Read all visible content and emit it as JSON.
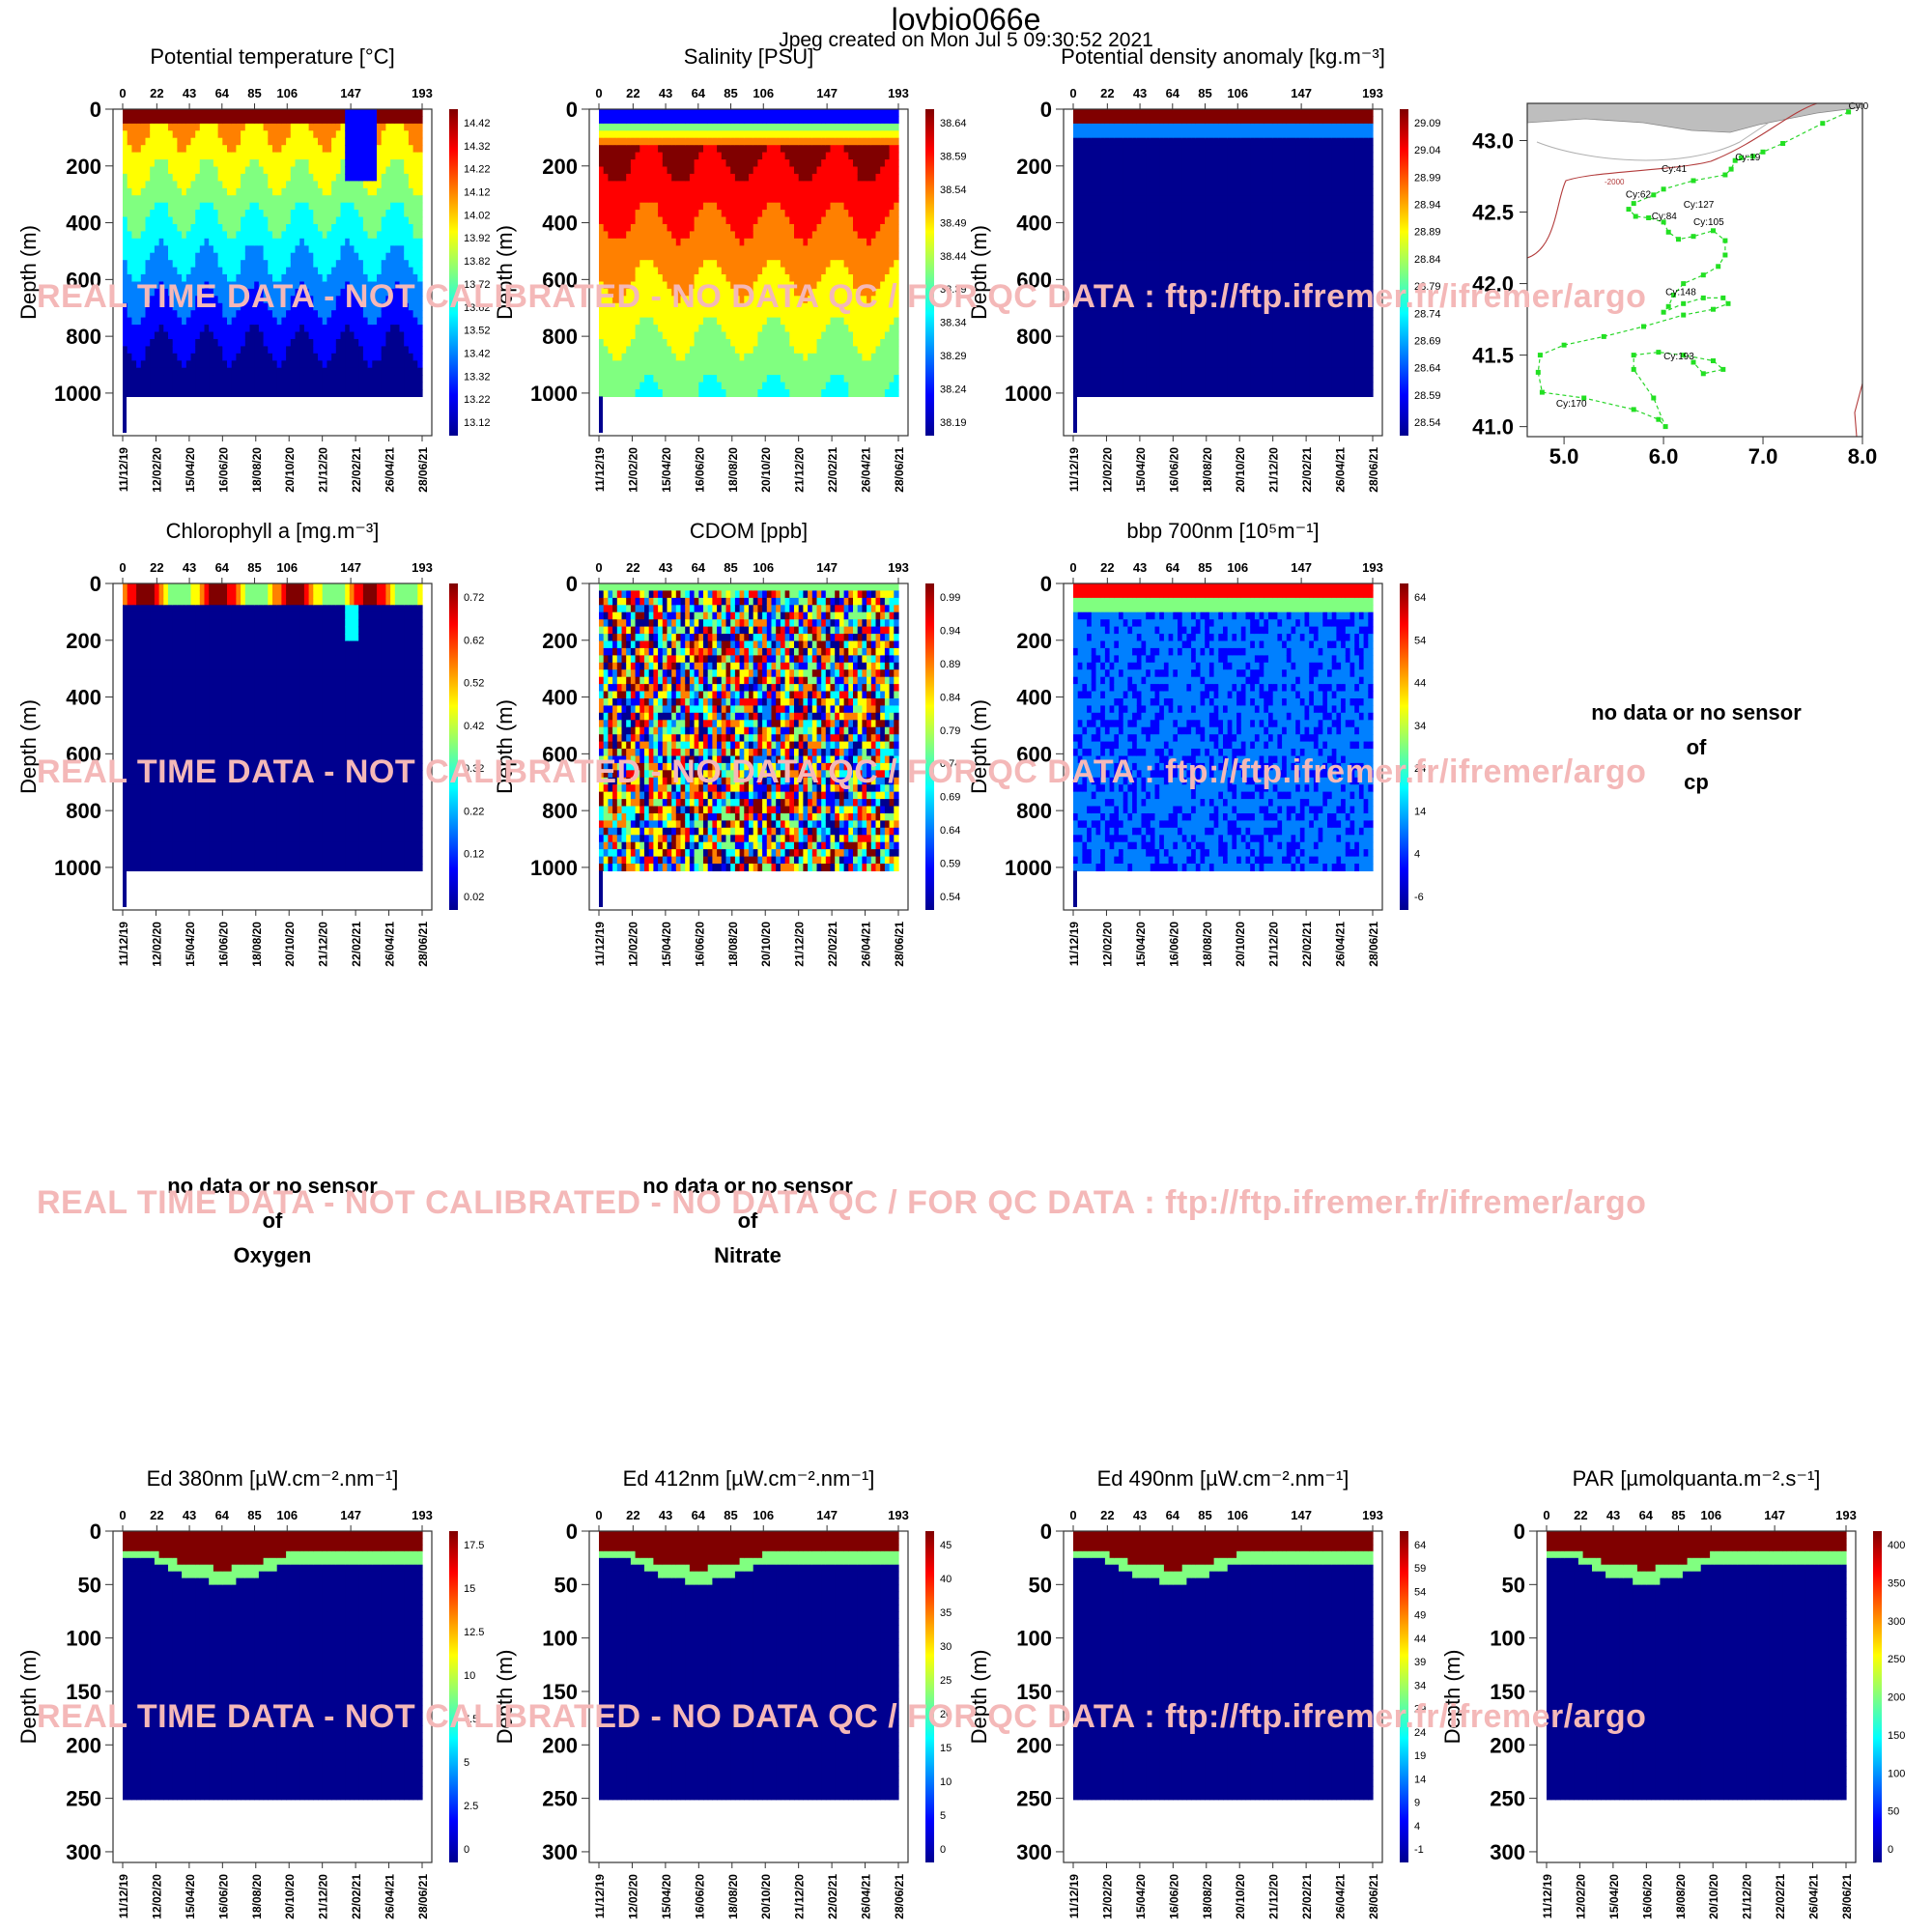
{
  "header": {
    "title": "lovbio066e",
    "subtitle": "Jpeg created on  Mon Jul  5 09:30:52 2021"
  },
  "watermark": "REAL TIME DATA - NOT CALIBRATED - NO DATA QC   /  FOR QC DATA : ftp://ftp.ifremer.fr/ifremer/argo",
  "common": {
    "cycle_ticks": [
      "0",
      "22",
      "43",
      "64",
      "85",
      "106",
      "147",
      "193"
    ],
    "cycle_values": [
      0,
      22,
      43,
      64,
      85,
      106,
      147,
      193
    ],
    "date_ticks": [
      "11/12/19",
      "12/02/20",
      "15/04/20",
      "16/06/20",
      "18/08/20",
      "20/10/20",
      "21/12/20",
      "22/02/21",
      "26/04/21",
      "28/06/21"
    ],
    "ylabel": "Depth (m)",
    "colormap": [
      "#00008f",
      "#0000ff",
      "#0080ff",
      "#00ffff",
      "#80ff80",
      "#ffff00",
      "#ff8000",
      "#ff0000",
      "#800000"
    ]
  },
  "no_data": [
    {
      "line1": "no data or no sensor",
      "line2": "of",
      "line3": "cp"
    },
    {
      "line1": "no data or no sensor",
      "line2": "of",
      "line3": "Oxygen"
    },
    {
      "line1": "no data or no sensor",
      "line2": "of",
      "line3": "Nitrate"
    }
  ],
  "chart_data": [
    {
      "type": "heatmap",
      "title": "Potential temperature [°C]",
      "ylabel": "Depth (m)",
      "y_ticks": [
        0,
        200,
        400,
        600,
        800,
        1000
      ],
      "ylim": [
        1150,
        0
      ],
      "colorbar": [
        "14.42",
        "14.32",
        "14.22",
        "14.12",
        "14.02",
        "13.92",
        "13.82",
        "13.72",
        "13.62",
        "13.52",
        "13.42",
        "13.32",
        "13.22",
        "13.12"
      ]
    },
    {
      "type": "heatmap",
      "title": "Salinity [PSU]",
      "ylabel": "Depth (m)",
      "y_ticks": [
        0,
        200,
        400,
        600,
        800,
        1000
      ],
      "ylim": [
        1150,
        0
      ],
      "colorbar": [
        "38.64",
        "38.59",
        "38.54",
        "38.49",
        "38.44",
        "38.39",
        "38.34",
        "38.29",
        "38.24",
        "38.19"
      ]
    },
    {
      "type": "heatmap",
      "title": "Potential density anomaly [kg.m⁻³]",
      "ylabel": "Depth (m)",
      "y_ticks": [
        0,
        200,
        400,
        600,
        800,
        1000
      ],
      "ylim": [
        1150,
        0
      ],
      "colorbar": [
        "29.09",
        "29.04",
        "28.99",
        "28.94",
        "28.89",
        "28.84",
        "28.79",
        "28.74",
        "28.69",
        "28.64",
        "28.59",
        "28.54"
      ]
    },
    {
      "type": "scatter",
      "title": "",
      "xlabel": "",
      "ylabel": "",
      "x_ticks": [
        "5.0",
        "6.0",
        "7.0",
        "8.0"
      ],
      "y_ticks": [
        "43.0",
        "42.5",
        "42.0",
        "41.5",
        "41.0"
      ],
      "xlim": [
        4.63,
        8.0
      ],
      "ylim": [
        40.93,
        43.26
      ],
      "contour_label": "-2000",
      "trajectory": [
        [
          7.86,
          43.2
        ],
        [
          7.6,
          43.12
        ],
        [
          7.2,
          42.98
        ],
        [
          7.0,
          42.92
        ],
        [
          6.9,
          42.89
        ],
        [
          6.78,
          42.88
        ],
        [
          6.72,
          42.86
        ],
        [
          6.68,
          42.8
        ],
        [
          6.62,
          42.76
        ],
        [
          6.3,
          42.72
        ],
        [
          6.0,
          42.66
        ],
        [
          5.9,
          42.62
        ],
        [
          5.7,
          42.56
        ],
        [
          5.65,
          42.52
        ],
        [
          5.72,
          42.47
        ],
        [
          5.85,
          42.46
        ],
        [
          6.0,
          42.43
        ],
        [
          6.05,
          42.36
        ],
        [
          6.15,
          42.31
        ],
        [
          6.3,
          42.33
        ],
        [
          6.5,
          42.37
        ],
        [
          6.62,
          42.3
        ],
        [
          6.62,
          42.2
        ],
        [
          6.55,
          42.12
        ],
        [
          6.4,
          42.06
        ],
        [
          6.2,
          42.0
        ],
        [
          6.1,
          41.92
        ],
        [
          6.05,
          41.84
        ],
        [
          6.0,
          41.8
        ],
        [
          6.2,
          41.86
        ],
        [
          6.4,
          41.9
        ],
        [
          6.6,
          41.9
        ],
        [
          6.65,
          41.86
        ],
        [
          6.5,
          41.82
        ],
        [
          6.2,
          41.78
        ],
        [
          5.8,
          41.7
        ],
        [
          5.4,
          41.63
        ],
        [
          5.0,
          41.57
        ],
        [
          4.76,
          41.5
        ],
        [
          4.74,
          41.38
        ],
        [
          4.78,
          41.24
        ],
        [
          5.2,
          41.2
        ],
        [
          5.7,
          41.12
        ],
        [
          5.95,
          41.05
        ],
        [
          6.02,
          41.0
        ],
        [
          5.9,
          41.2
        ],
        [
          5.7,
          41.4
        ],
        [
          5.7,
          41.5
        ],
        [
          5.95,
          41.52
        ],
        [
          6.2,
          41.5
        ],
        [
          6.5,
          41.46
        ],
        [
          6.6,
          41.4
        ],
        [
          6.4,
          41.37
        ],
        [
          6.3,
          41.45
        ]
      ],
      "cycle_labels": [
        {
          "text": "Cy:0",
          "lon": 7.86,
          "lat": 43.22
        },
        {
          "text": "Cy:19",
          "lon": 6.72,
          "lat": 42.86
        },
        {
          "text": "Cy:41",
          "lon": 5.98,
          "lat": 42.78
        },
        {
          "text": "Cy:62",
          "lon": 5.62,
          "lat": 42.6
        },
        {
          "text": "Cy:127",
          "lon": 6.2,
          "lat": 42.53
        },
        {
          "text": "Cy:84",
          "lon": 5.88,
          "lat": 42.45
        },
        {
          "text": "Cy:105",
          "lon": 6.3,
          "lat": 42.41
        },
        {
          "text": "Cy:148",
          "lon": 6.02,
          "lat": 41.92
        },
        {
          "text": "Cy:193",
          "lon": 6.0,
          "lat": 41.47
        },
        {
          "text": "Cy:170",
          "lon": 4.92,
          "lat": 41.14
        }
      ]
    },
    {
      "type": "heatmap",
      "title": "Chlorophyll a [mg.m⁻³]",
      "ylabel": "Depth (m)",
      "y_ticks": [
        0,
        200,
        400,
        600,
        800,
        1000
      ],
      "ylim": [
        1150,
        0
      ],
      "colorbar": [
        "0.72",
        "0.62",
        "0.52",
        "0.42",
        "0.32",
        "0.22",
        "0.12",
        "0.02"
      ]
    },
    {
      "type": "heatmap",
      "title": "CDOM  [ppb]",
      "ylabel": "Depth (m)",
      "y_ticks": [
        0,
        200,
        400,
        600,
        800,
        1000
      ],
      "ylim": [
        1150,
        0
      ],
      "colorbar": [
        "0.99",
        "0.94",
        "0.89",
        "0.84",
        "0.79",
        "0.74",
        "0.69",
        "0.64",
        "0.59",
        "0.54"
      ]
    },
    {
      "type": "heatmap",
      "title": "bbp 700nm [10⁵m⁻¹]",
      "ylabel": "Depth (m)",
      "y_ticks": [
        0,
        200,
        400,
        600,
        800,
        1000
      ],
      "ylim": [
        1150,
        0
      ],
      "colorbar": [
        "64",
        "54",
        "44",
        "34",
        "24",
        "14",
        "4",
        "-6"
      ]
    },
    {
      "type": "heatmap",
      "title": "Ed 380nm [µW.cm⁻².nm⁻¹]",
      "ylabel": "Depth (m)",
      "y_ticks": [
        0,
        50,
        100,
        150,
        200,
        250,
        300
      ],
      "ylim": [
        310,
        0
      ],
      "colorbar": [
        "17.5",
        "15",
        "12.5",
        "10",
        "7.5",
        "5",
        "2.5",
        "0"
      ]
    },
    {
      "type": "heatmap",
      "title": "Ed 412nm [µW.cm⁻².nm⁻¹]",
      "ylabel": "Depth (m)",
      "y_ticks": [
        0,
        50,
        100,
        150,
        200,
        250,
        300
      ],
      "ylim": [
        310,
        0
      ],
      "colorbar": [
        "45",
        "40",
        "35",
        "30",
        "25",
        "20",
        "15",
        "10",
        "5",
        "0"
      ]
    },
    {
      "type": "heatmap",
      "title": "Ed 490nm [µW.cm⁻².nm⁻¹]",
      "ylabel": "Depth (m)",
      "y_ticks": [
        0,
        50,
        100,
        150,
        200,
        250,
        300
      ],
      "ylim": [
        310,
        0
      ],
      "colorbar": [
        "64",
        "59",
        "54",
        "49",
        "44",
        "39",
        "34",
        "29",
        "24",
        "19",
        "14",
        "9",
        "4",
        "-1"
      ]
    },
    {
      "type": "heatmap",
      "title": "PAR [µmolquanta.m⁻².s⁻¹]",
      "ylabel": "Depth (m)",
      "y_ticks": [
        0,
        50,
        100,
        150,
        200,
        250,
        300
      ],
      "ylim": [
        310,
        0
      ],
      "colorbar": [
        "400",
        "350",
        "300",
        "250",
        "200",
        "150",
        "100",
        "50",
        "0"
      ]
    }
  ]
}
